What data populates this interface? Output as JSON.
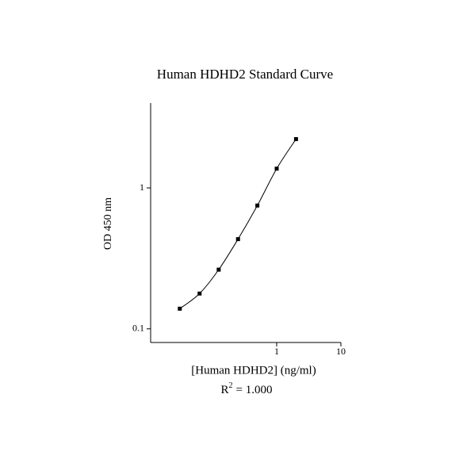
{
  "chart_data": {
    "type": "scatter",
    "title": "Human HDHD2 Standard Curve",
    "x_label": "[Human HDHD2] (ng/ml)",
    "y_label": "OD 450 nm",
    "annotation": {
      "base": "R",
      "superscript": "2",
      "text": "= 1.000"
    },
    "log_x": true,
    "log_y": true,
    "color": "#000000",
    "x": [
      0.031,
      0.063,
      0.125,
      0.25,
      0.5,
      1,
      2
    ],
    "values": [
      0.139,
      0.178,
      0.263,
      0.433,
      0.75,
      1.37,
      2.22
    ],
    "xlim": [
      0.01,
      10
    ],
    "ylim": [
      0.08,
      4
    ],
    "xticks": [
      1,
      10
    ],
    "yticks": [
      0.1,
      1
    ]
  }
}
